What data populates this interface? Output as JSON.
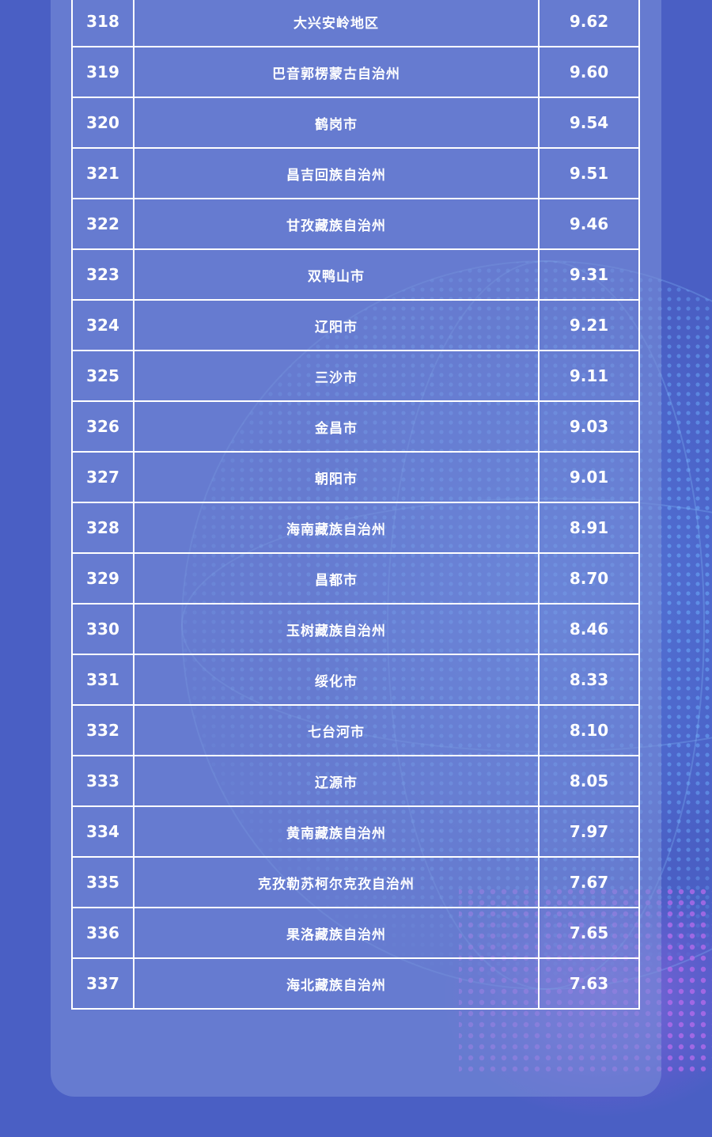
{
  "rows": [
    {
      "rank": "318",
      "name": "大兴安岭地区",
      "value": "9.62"
    },
    {
      "rank": "319",
      "name": "巴音郭楞蒙古自治州",
      "value": "9.60"
    },
    {
      "rank": "320",
      "name": "鹤岗市",
      "value": "9.54"
    },
    {
      "rank": "321",
      "name": "昌吉回族自治州",
      "value": "9.51"
    },
    {
      "rank": "322",
      "name": "甘孜藏族自治州",
      "value": "9.46"
    },
    {
      "rank": "323",
      "name": "双鸭山市",
      "value": "9.31"
    },
    {
      "rank": "324",
      "name": "辽阳市",
      "value": "9.21"
    },
    {
      "rank": "325",
      "name": "三沙市",
      "value": "9.11"
    },
    {
      "rank": "326",
      "name": "金昌市",
      "value": "9.03"
    },
    {
      "rank": "327",
      "name": "朝阳市",
      "value": "9.01"
    },
    {
      "rank": "328",
      "name": "海南藏族自治州",
      "value": "8.91"
    },
    {
      "rank": "329",
      "name": "昌都市",
      "value": "8.70"
    },
    {
      "rank": "330",
      "name": "玉树藏族自治州",
      "value": "8.46"
    },
    {
      "rank": "331",
      "name": "绥化市",
      "value": "8.33"
    },
    {
      "rank": "332",
      "name": "七台河市",
      "value": "8.10"
    },
    {
      "rank": "333",
      "name": "辽源市",
      "value": "8.05"
    },
    {
      "rank": "334",
      "name": "黄南藏族自治州",
      "value": "7.97"
    },
    {
      "rank": "335",
      "name": "克孜勒苏柯尔克孜自治州",
      "value": "7.67"
    },
    {
      "rank": "336",
      "name": "果洛藏族自治州",
      "value": "7.65"
    },
    {
      "rank": "337",
      "name": "海北藏族自治州",
      "value": "7.63"
    }
  ],
  "colors": {
    "background": "#4a5fc4",
    "panel": "#7a8cd6",
    "grid": "#ffffff",
    "text": "#ffffff",
    "globe_dots": "#6fb3ff",
    "accent_dots": "#c06cf0"
  },
  "decorations": {
    "globe": "dotted-globe-graphic"
  }
}
